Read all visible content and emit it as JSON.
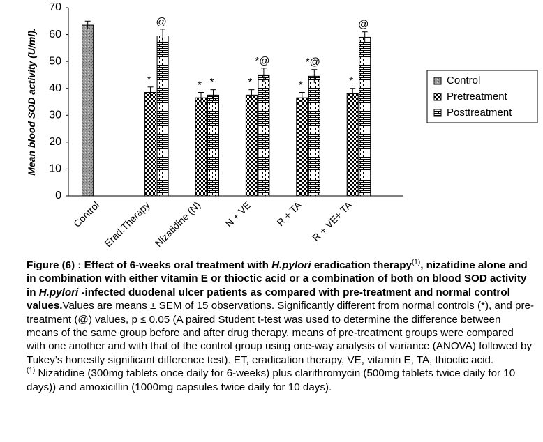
{
  "chart_data": {
    "type": "bar",
    "ylabel": "Mean blood SOD activity (U/ml).",
    "categories": [
      "Control",
      "Erad.Therapy",
      "Nizatidine (N)",
      "N + VE",
      "R + TA",
      "R + VE+ TA"
    ],
    "series": [
      {
        "name": "Control",
        "pattern": "speckle",
        "values": [
          63.5,
          null,
          null,
          null,
          null,
          null
        ],
        "errors": [
          1.5,
          null,
          null,
          null,
          null,
          null
        ],
        "markers": [
          null,
          null,
          null,
          null,
          null,
          null
        ]
      },
      {
        "name": "Pretreatment",
        "pattern": "checker",
        "values": [
          null,
          38.5,
          36.5,
          37.5,
          36.5,
          38
        ],
        "errors": [
          null,
          2,
          2,
          2,
          2,
          2
        ],
        "markers": [
          null,
          "*",
          "*",
          "*",
          "*",
          "*"
        ]
      },
      {
        "name": "Posttreatment",
        "pattern": "brick",
        "values": [
          null,
          59.5,
          37.5,
          45,
          44.5,
          59
        ],
        "errors": [
          null,
          2.5,
          2,
          2.5,
          2.5,
          2
        ],
        "markers": [
          null,
          "@",
          "*",
          "*@",
          "*@",
          "@"
        ]
      }
    ],
    "ylim": [
      0,
      70
    ],
    "yticks": [
      0,
      10,
      20,
      30,
      40,
      50,
      60,
      70
    ],
    "grid": false,
    "legend": "right"
  },
  "caption": {
    "segments": [
      "Figure (6) : Effect of 6-weeks oral treatment with ",
      "H.pylori",
      " eradication therapy",
      "(1)",
      ", nizatidine alone and in combination with either vitamin E or thioctic acid or a combination of both on blood SOD activity in ",
      "H.pylori",
      " -infected duodenal ulcer patients as compared with pre-treatment and normal control values.",
      "Values are means ± SEM of 15 observations. Significantly different from normal controls (*), and pre-treatment (@) values, p ≤ 0.05 (A paired Student t-test was used to determine the difference between means of the same group before and after drug therapy, means of pre-treatment groups were compared with one another and with that of the control group using one-way analysis of variance (ANOVA) followed by Tukey’s honestly significant difference test). ET, eradication therapy, VE, vitamin E, TA, thioctic acid."
    ],
    "footnote_marker": "(1)",
    "footnote": " Nizatidine (300mg tablets once daily for 6-weeks) plus clarithromycin (500mg tablets twice daily for 10 days)) and amoxicillin (1000mg capsules twice daily for 10 days)."
  }
}
